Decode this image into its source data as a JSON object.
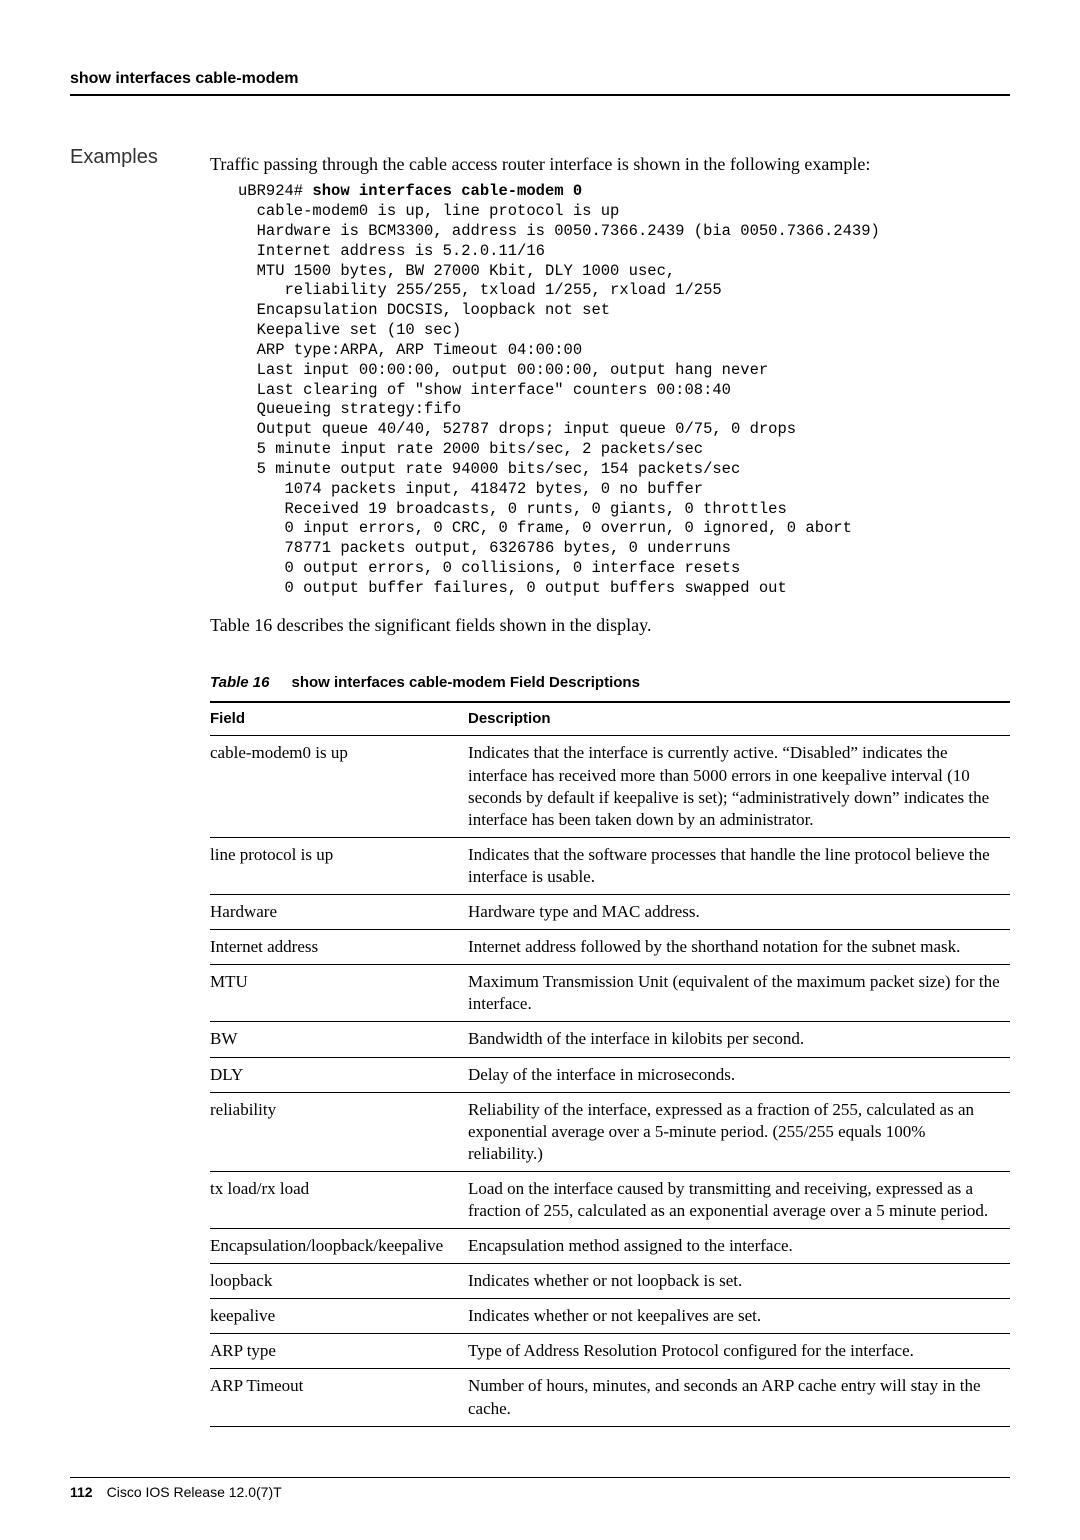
{
  "header": {
    "title": "show interfaces cable-modem"
  },
  "section": {
    "label": "Examples",
    "intro": "Traffic passing through the cable access router interface is shown in the following example:",
    "cli_prompt": "uBR924# ",
    "cli_command": "show interfaces cable-modem 0",
    "cli_body": "  cable-modem0 is up, line protocol is up\n  Hardware is BCM3300, address is 0050.7366.2439 (bia 0050.7366.2439)\n  Internet address is 5.2.0.11/16\n  MTU 1500 bytes, BW 27000 Kbit, DLY 1000 usec,\n     reliability 255/255, txload 1/255, rxload 1/255\n  Encapsulation DOCSIS, loopback not set\n  Keepalive set (10 sec)\n  ARP type:ARPA, ARP Timeout 04:00:00\n  Last input 00:00:00, output 00:00:00, output hang never\n  Last clearing of \"show interface\" counters 00:08:40\n  Queueing strategy:fifo\n  Output queue 40/40, 52787 drops; input queue 0/75, 0 drops\n  5 minute input rate 2000 bits/sec, 2 packets/sec\n  5 minute output rate 94000 bits/sec, 154 packets/sec\n     1074 packets input, 418472 bytes, 0 no buffer\n     Received 19 broadcasts, 0 runts, 0 giants, 0 throttles\n     0 input errors, 0 CRC, 0 frame, 0 overrun, 0 ignored, 0 abort\n     78771 packets output, 6326786 bytes, 0 underruns\n     0 output errors, 0 collisions, 0 interface resets\n     0 output buffer failures, 0 output buffers swapped out",
    "post_table_ref": "Table 16 describes the significant fields shown in the display."
  },
  "table": {
    "caption_num": "Table 16",
    "caption_title": "show interfaces cable-modem Field Descriptions",
    "columns": [
      "Field",
      "Description"
    ],
    "rows": [
      [
        "cable-modem0 is up",
        "Indicates that the interface is currently active. “Disabled” indicates the interface has received more than 5000 errors in one keepalive interval (10 seconds by default if keepalive is set); “administratively down” indicates the interface has been taken down by an administrator."
      ],
      [
        "line protocol is up",
        "Indicates that the software processes that handle the line protocol believe the interface is usable."
      ],
      [
        "Hardware",
        "Hardware type and MAC address."
      ],
      [
        "Internet address",
        "Internet address followed by the shorthand notation for the subnet mask."
      ],
      [
        "MTU",
        "Maximum Transmission Unit (equivalent of the maximum packet size) for the interface."
      ],
      [
        "BW",
        "Bandwidth of the interface in kilobits per second."
      ],
      [
        "DLY",
        "Delay of the interface in microseconds."
      ],
      [
        "reliability",
        "Reliability of the interface, expressed as a fraction of 255, calculated as an exponential average over a 5-minute period. (255/255 equals 100% reliability.)"
      ],
      [
        "tx load/rx load",
        "Load on the interface caused by transmitting and receiving, expressed as a fraction of 255, calculated as an exponential average over a 5 minute period."
      ],
      [
        "Encapsulation/loopback/keepalive",
        "Encapsulation method assigned to the interface."
      ],
      [
        "loopback",
        "Indicates whether or not loopback is set."
      ],
      [
        "keepalive",
        "Indicates whether or not keepalives are set."
      ],
      [
        "ARP type",
        "Type of Address Resolution Protocol configured for the interface."
      ],
      [
        "ARP Timeout",
        "Number of hours, minutes, and seconds an ARP cache entry will stay in the cache."
      ]
    ]
  },
  "footer": {
    "page_number": "112",
    "release": "Cisco IOS Release 12.0(7)T"
  }
}
